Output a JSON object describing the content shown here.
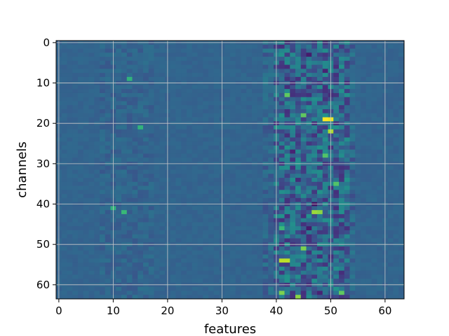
{
  "chart_data": {
    "type": "heatmap",
    "title": "",
    "xlabel": "features",
    "ylabel": "channels",
    "x_range": [
      0,
      63
    ],
    "y_range": [
      0,
      63
    ],
    "y_inverted": true,
    "grid": true,
    "colormap": "viridis",
    "x_ticks": [
      0,
      10,
      20,
      30,
      40,
      50,
      60
    ],
    "y_ticks": [
      0,
      10,
      20,
      30,
      40,
      50,
      60
    ],
    "approx_value_range": [
      -1,
      1
    ],
    "colors": {
      "background_teal": "#3b528b",
      "bright_yellow": "#fde725",
      "dark_purple": "#440154",
      "grid": "#c8c8c8"
    },
    "notable_cells": [
      {
        "x": 49,
        "y": 19,
        "value": 1.0
      },
      {
        "x": 50,
        "y": 19,
        "value": 0.95
      },
      {
        "x": 50,
        "y": 22,
        "value": 0.75
      },
      {
        "x": 47,
        "y": 42,
        "value": 0.7
      },
      {
        "x": 48,
        "y": 42,
        "value": 0.65
      },
      {
        "x": 44,
        "y": 63,
        "value": 0.65
      },
      {
        "x": 41,
        "y": 62,
        "value": 0.6
      },
      {
        "x": 41,
        "y": 54,
        "value": 0.8
      },
      {
        "x": 42,
        "y": 54,
        "value": 0.8
      },
      {
        "x": 45,
        "y": 51,
        "value": 0.6
      },
      {
        "x": 45,
        "y": 18,
        "value": 0.5
      },
      {
        "x": 42,
        "y": 13,
        "value": 0.5
      },
      {
        "x": 51,
        "y": 35,
        "value": 0.45
      },
      {
        "x": 52,
        "y": 62,
        "value": 0.5
      },
      {
        "x": 49,
        "y": 28,
        "value": 0.45
      },
      {
        "x": 43,
        "y": 27,
        "value": -0.8
      },
      {
        "x": 46,
        "y": 3,
        "value": -0.85
      },
      {
        "x": 47,
        "y": 40,
        "value": -0.9
      },
      {
        "x": 49,
        "y": 7,
        "value": -0.8
      },
      {
        "x": 46,
        "y": 46,
        "value": -0.85
      },
      {
        "x": 48,
        "y": 62,
        "value": -0.8
      },
      {
        "x": 44,
        "y": 34,
        "value": -0.75
      },
      {
        "x": 43,
        "y": 56,
        "value": -0.7
      },
      {
        "x": 47,
        "y": 23,
        "value": -0.7
      },
      {
        "x": 41,
        "y": 46,
        "value": 0.35
      },
      {
        "x": 12,
        "y": 42,
        "value": 0.35
      },
      {
        "x": 15,
        "y": 21,
        "value": 0.3
      },
      {
        "x": 10,
        "y": 41,
        "value": 0.3
      },
      {
        "x": 13,
        "y": 9,
        "value": 0.3
      }
    ]
  }
}
